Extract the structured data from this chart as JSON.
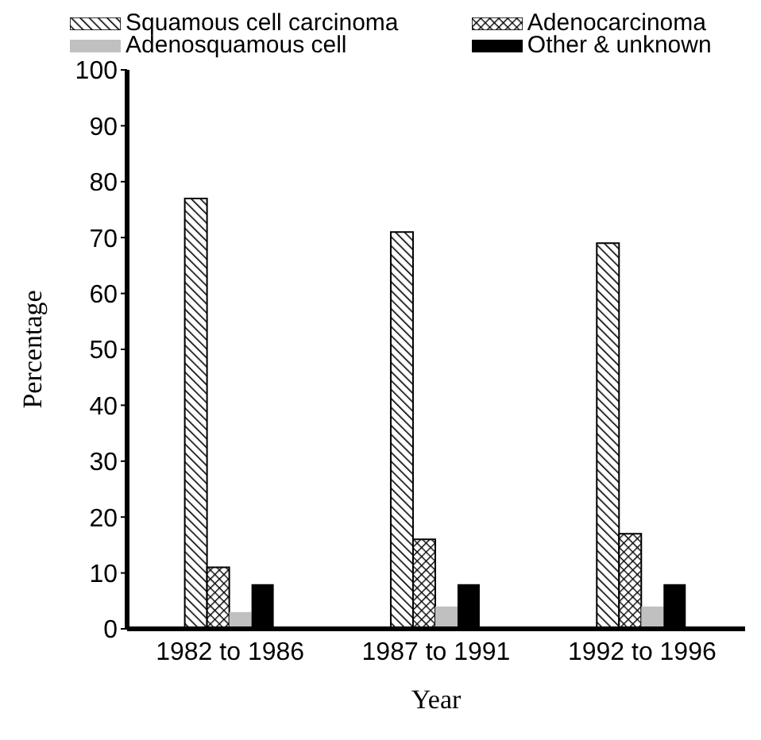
{
  "chart_data": {
    "type": "bar",
    "xlabel": "Year",
    "ylabel": "Percentage",
    "categories": [
      "1982 to 1986",
      "1987 to 1991",
      "1992 to 1996"
    ],
    "series": [
      {
        "name": "Squamous cell carcinoma",
        "color": "#000000",
        "values": [
          77,
          71,
          69
        ]
      },
      {
        "name": "Adenocarcinoma",
        "color": "#000000",
        "values": [
          11,
          16,
          17
        ]
      },
      {
        "name": "Adenosquamous  cell",
        "color": "#c0c0c0",
        "values": [
          3,
          4,
          4
        ]
      },
      {
        "name": "Other & unknown",
        "color": "#000000",
        "values": [
          8,
          8,
          8
        ]
      }
    ],
    "ylim": [
      0,
      100
    ],
    "yticks": [
      0,
      10,
      20,
      30,
      40,
      50,
      60,
      70,
      80,
      90,
      100
    ],
    "grid": false,
    "legend": "top"
  }
}
